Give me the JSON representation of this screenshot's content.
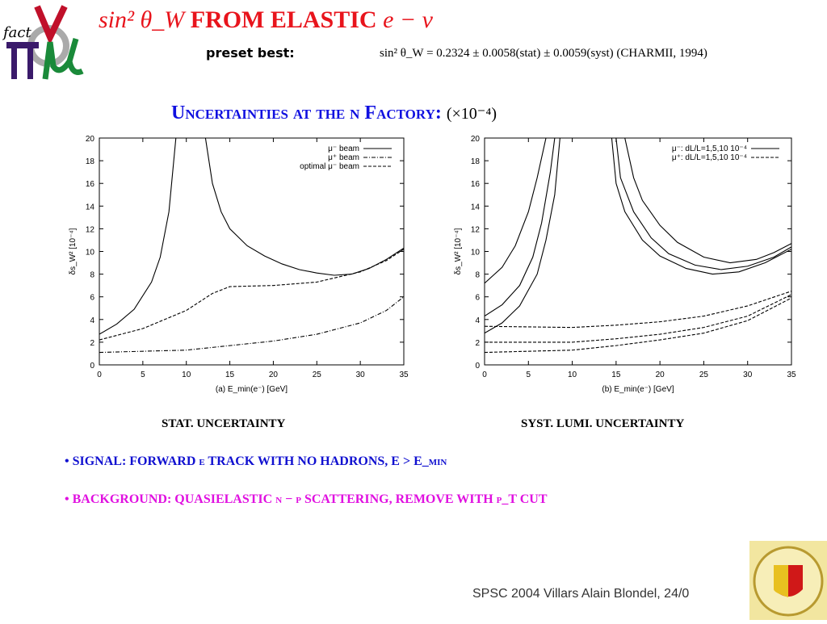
{
  "header": {
    "title_math": "sin² θ_W",
    "title_text": "FROM ELASTIC",
    "title_math2": "e − ν",
    "preset_label": "preset best:",
    "formula": "sin² θ_W = 0.2324 ± 0.0058(stat) ± 0.0059(syst)    (CHARMII, 1994)",
    "logo_text": "fact νμ π"
  },
  "subtitle": {
    "text": "Uncertainties at the ν Factory:",
    "unit": "(×10⁻⁴)"
  },
  "captions": {
    "left": "STAT. UNCERTAINTY",
    "right": "SYST. LUMI. UNCERTAINTY"
  },
  "bullets": [
    "• SIGNAL: FORWARD e TRACK WITH NO HADRONS, E > E_min",
    "• BACKGROUND: QUASIELASTIC ν − p SCATTERING, REMOVE WITH p_T CUT"
  ],
  "footer": {
    "text": "SPSC 2004 Villars   Alain Blondel, 24/0",
    "seal_text": "SCHOLA GENEVENSIS 1559"
  },
  "chart_data": [
    {
      "type": "line",
      "xlabel": "(a)  E_min(e⁻) [GeV]",
      "ylabel": "δs_W² [10⁻⁴]",
      "xlim": [
        0,
        35
      ],
      "ylim": [
        0,
        20
      ],
      "xticks": [
        0,
        5,
        10,
        15,
        20,
        25,
        30,
        35
      ],
      "yticks": [
        0,
        2,
        4,
        6,
        8,
        10,
        12,
        14,
        16,
        18,
        20
      ],
      "legend": "top-right",
      "series": [
        {
          "name": "μ⁻ beam",
          "style": "solid",
          "segments": [
            [
              [
                0,
                2.7
              ],
              [
                2,
                3.6
              ],
              [
                4,
                4.9
              ],
              [
                6,
                7.3
              ],
              [
                7,
                9.5
              ],
              [
                8,
                13.5
              ],
              [
                8.8,
                20
              ]
            ],
            [
              [
                12.2,
                20
              ],
              [
                13,
                16
              ],
              [
                14,
                13.5
              ],
              [
                15,
                12
              ],
              [
                17,
                10.5
              ],
              [
                19,
                9.6
              ],
              [
                21,
                8.9
              ],
              [
                23,
                8.4
              ],
              [
                25,
                8.1
              ],
              [
                27,
                7.9
              ],
              [
                29,
                8.0
              ],
              [
                31,
                8.5
              ],
              [
                33,
                9.3
              ],
              [
                35,
                10.3
              ]
            ]
          ]
        },
        {
          "name": "μ⁺ beam",
          "style": "dashdot",
          "segments": [
            [
              [
                0,
                1.1
              ],
              [
                5,
                1.2
              ],
              [
                10,
                1.3
              ],
              [
                15,
                1.7
              ],
              [
                20,
                2.1
              ],
              [
                25,
                2.7
              ],
              [
                30,
                3.7
              ],
              [
                33,
                4.8
              ],
              [
                35,
                6.0
              ]
            ]
          ]
        },
        {
          "name": "optimal μ⁻ beam",
          "style": "dashed",
          "segments": [
            [
              [
                0,
                2.2
              ],
              [
                5,
                3.2
              ],
              [
                10,
                4.8
              ],
              [
                13,
                6.3
              ],
              [
                15,
                6.9
              ],
              [
                20,
                7.0
              ],
              [
                25,
                7.3
              ],
              [
                30,
                8.2
              ],
              [
                33,
                9.2
              ],
              [
                35,
                10.2
              ]
            ]
          ]
        }
      ]
    },
    {
      "type": "line",
      "xlabel": "(b)  E_min(e⁻) [GeV]",
      "ylabel": "δs_W² [10⁻⁴]",
      "xlim": [
        0,
        35
      ],
      "ylim": [
        0,
        20
      ],
      "xticks": [
        0,
        5,
        10,
        15,
        20,
        25,
        30,
        35
      ],
      "yticks": [
        0,
        2,
        4,
        6,
        8,
        10,
        12,
        14,
        16,
        18,
        20
      ],
      "legend": "top-right",
      "series": [
        {
          "name": "μ⁻: dL/L=1,5,10 10⁻⁴",
          "style": "solid",
          "segments": [
            [
              [
                0,
                2.8
              ],
              [
                2,
                3.7
              ],
              [
                4,
                5.2
              ],
              [
                6,
                8
              ],
              [
                7,
                11
              ],
              [
                8,
                15
              ],
              [
                8.6,
                20
              ]
            ],
            [
              [
                14.5,
                20
              ],
              [
                15,
                16
              ],
              [
                16,
                13.5
              ],
              [
                18,
                11
              ],
              [
                20,
                9.6
              ],
              [
                23,
                8.5
              ],
              [
                26,
                8.0
              ],
              [
                29,
                8.2
              ],
              [
                32,
                9.0
              ],
              [
                35,
                10.2
              ]
            ],
            [
              [
                0,
                4.3
              ],
              [
                2,
                5.3
              ],
              [
                4,
                7
              ],
              [
                5.5,
                9.5
              ],
              [
                6.5,
                12.5
              ],
              [
                7.5,
                17
              ],
              [
                8,
                20
              ]
            ],
            [
              [
                15,
                20
              ],
              [
                15.5,
                16.5
              ],
              [
                17,
                13.5
              ],
              [
                19,
                11.2
              ],
              [
                21,
                9.8
              ],
              [
                24,
                8.8
              ],
              [
                27,
                8.4
              ],
              [
                30,
                8.7
              ],
              [
                33,
                9.5
              ],
              [
                35,
                10.4
              ]
            ],
            [
              [
                0,
                7.2
              ],
              [
                2,
                8.6
              ],
              [
                3.5,
                10.5
              ],
              [
                5,
                13.5
              ],
              [
                6,
                16.5
              ],
              [
                7,
                20
              ]
            ],
            [
              [
                16,
                20
              ],
              [
                17,
                16.5
              ],
              [
                18,
                14.5
              ],
              [
                20,
                12.3
              ],
              [
                22,
                10.8
              ],
              [
                25,
                9.5
              ],
              [
                28,
                9.0
              ],
              [
                31,
                9.3
              ],
              [
                33,
                9.9
              ],
              [
                35,
                10.7
              ]
            ]
          ]
        },
        {
          "name": "μ⁺: dL/L=1,5,10 10⁻⁴",
          "style": "dashed",
          "segments": [
            [
              [
                0,
                1.1
              ],
              [
                10,
                1.3
              ],
              [
                15,
                1.7
              ],
              [
                20,
                2.2
              ],
              [
                25,
                2.8
              ],
              [
                30,
                3.9
              ],
              [
                35,
                5.9
              ]
            ],
            [
              [
                0,
                2.0
              ],
              [
                10,
                2.0
              ],
              [
                15,
                2.3
              ],
              [
                20,
                2.7
              ],
              [
                25,
                3.3
              ],
              [
                30,
                4.3
              ],
              [
                35,
                6.2
              ]
            ],
            [
              [
                0,
                3.4
              ],
              [
                10,
                3.3
              ],
              [
                15,
                3.5
              ],
              [
                20,
                3.8
              ],
              [
                25,
                4.3
              ],
              [
                30,
                5.2
              ],
              [
                35,
                6.5
              ]
            ]
          ]
        }
      ]
    }
  ]
}
